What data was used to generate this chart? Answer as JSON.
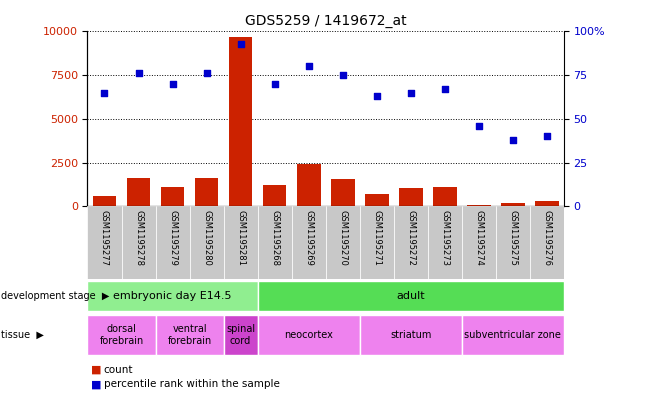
{
  "title": "GDS5259 / 1419672_at",
  "samples": [
    "GSM1195277",
    "GSM1195278",
    "GSM1195279",
    "GSM1195280",
    "GSM1195281",
    "GSM1195268",
    "GSM1195269",
    "GSM1195270",
    "GSM1195271",
    "GSM1195272",
    "GSM1195273",
    "GSM1195274",
    "GSM1195275",
    "GSM1195276"
  ],
  "counts": [
    600,
    1600,
    1100,
    1600,
    9700,
    1200,
    2400,
    1550,
    700,
    1050,
    1100,
    50,
    200,
    300
  ],
  "percentiles": [
    65,
    76,
    70,
    76,
    93,
    70,
    80,
    75,
    63,
    65,
    67,
    46,
    38,
    40
  ],
  "ylim_left": [
    0,
    10000
  ],
  "ylim_right": [
    0,
    100
  ],
  "yticks_left": [
    0,
    2500,
    5000,
    7500,
    10000
  ],
  "yticks_right": [
    0,
    25,
    50,
    75,
    100
  ],
  "ytick_right_labels": [
    "0",
    "25",
    "50",
    "75",
    "100%"
  ],
  "dev_stage_groups": [
    {
      "label": "embryonic day E14.5",
      "start": 0,
      "end": 4,
      "color": "#90EE90"
    },
    {
      "label": "adult",
      "start": 5,
      "end": 13,
      "color": "#55DD55"
    }
  ],
  "tissue_groups": [
    {
      "label": "dorsal\nforebrain",
      "start": 0,
      "end": 1,
      "color": "#EE82EE"
    },
    {
      "label": "ventral\nforebrain",
      "start": 2,
      "end": 3,
      "color": "#EE82EE"
    },
    {
      "label": "spinal\ncord",
      "start": 4,
      "end": 4,
      "color": "#CC44CC"
    },
    {
      "label": "neocortex",
      "start": 5,
      "end": 7,
      "color": "#EE82EE"
    },
    {
      "label": "striatum",
      "start": 8,
      "end": 10,
      "color": "#EE82EE"
    },
    {
      "label": "subventricular zone",
      "start": 11,
      "end": 13,
      "color": "#EE82EE"
    }
  ],
  "bar_color": "#CC2200",
  "dot_color": "#0000CC",
  "background_color": "#ffffff",
  "grid_color": "#000000",
  "label_color_left": "#CC2200",
  "label_color_right": "#0000CC",
  "sample_bg_color": "#C8C8C8"
}
